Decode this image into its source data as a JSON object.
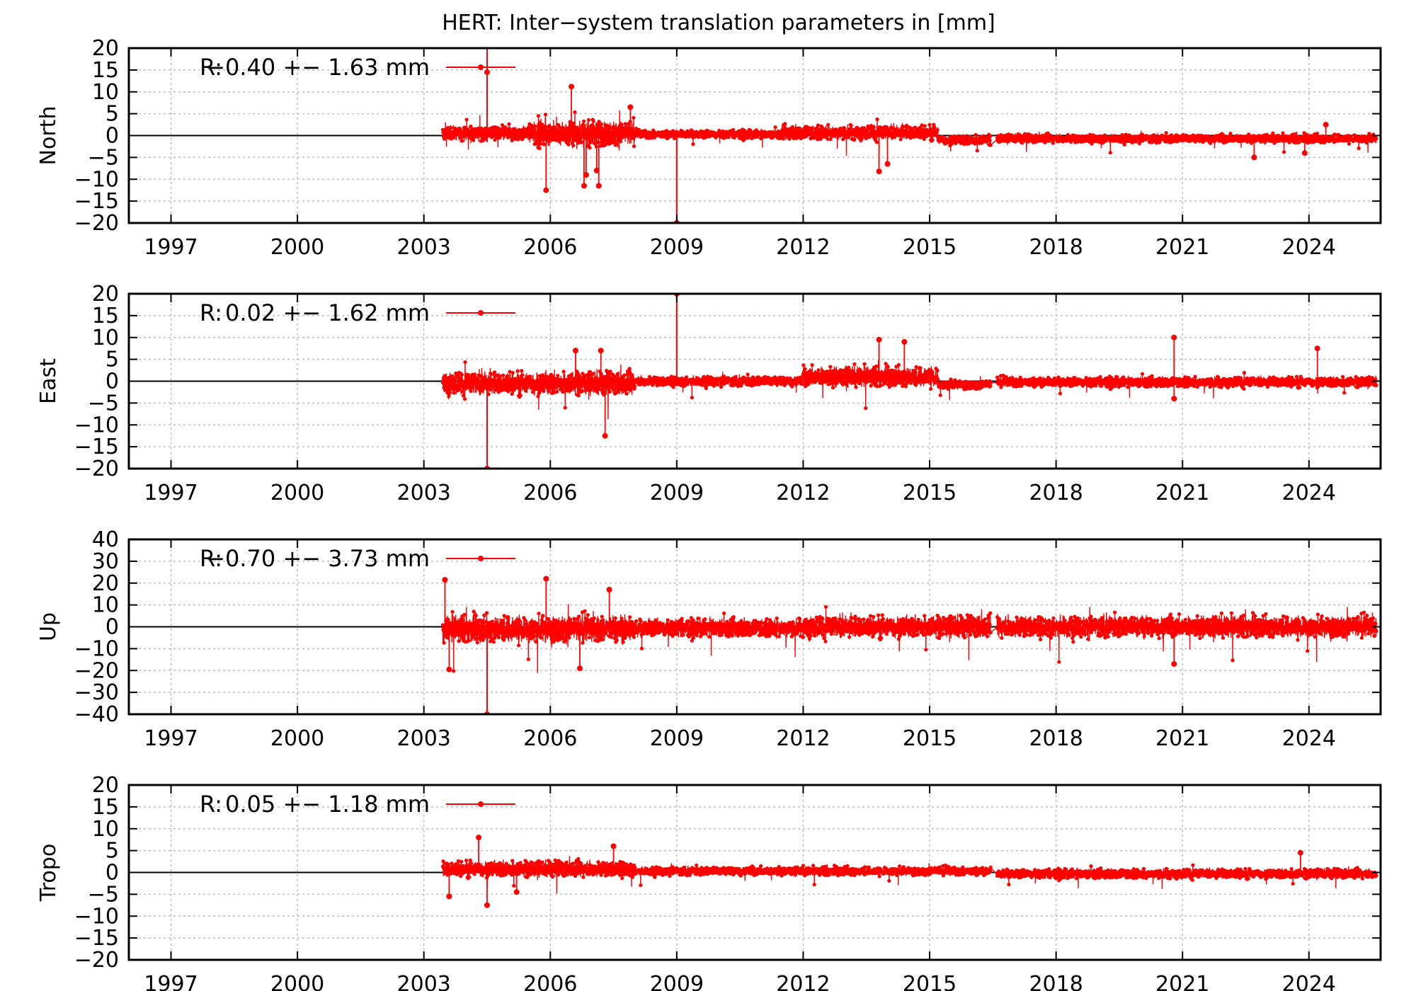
{
  "title": "HERT: Inter−system translation parameters in [mm]",
  "colors": {
    "series": "#ff0000",
    "frame": "#000000",
    "grid": "#bdbdbd",
    "zero": "#000000"
  },
  "chart_data": [
    {
      "type": "scatter",
      "ylabel": "North",
      "xlim": [
        1996,
        2025.7
      ],
      "ylim": [
        -20,
        20
      ],
      "yticks": [
        20,
        15,
        10,
        5,
        0,
        -5,
        -10,
        -15,
        -20
      ],
      "ytick_labels": [
        "20",
        "15",
        "10",
        "5",
        "0",
        "−5",
        "−10",
        "−15",
        "−20"
      ],
      "xticks": [
        1997,
        2000,
        2003,
        2006,
        2009,
        2012,
        2015,
        2018,
        2021,
        2024
      ],
      "xtick_labels": [
        "1997",
        "2000",
        "2003",
        "2006",
        "2009",
        "2012",
        "2015",
        "2018",
        "2021",
        "2024"
      ],
      "legend": {
        "label": "R:",
        "value": "−0.40 +− 1.63 mm"
      },
      "data_span": [
        2003.45,
        2025.6
      ],
      "segments": [
        {
          "start": 2003.45,
          "end": 2005.5,
          "mean": 0.5,
          "amp": 2.0
        },
        {
          "start": 2005.5,
          "end": 2008.0,
          "mean": 0.5,
          "amp": 3.5
        },
        {
          "start": 2008.0,
          "end": 2011.5,
          "mean": 0.3,
          "amp": 1.2
        },
        {
          "start": 2011.5,
          "end": 2015.2,
          "mean": 0.7,
          "amp": 2.0
        },
        {
          "start": 2015.2,
          "end": 2016.45,
          "mean": -1.0,
          "amp": 1.4
        },
        {
          "start": 2016.6,
          "end": 2025.6,
          "mean": -0.7,
          "amp": 1.2
        }
      ],
      "outliers": [
        {
          "x": 2004.5,
          "y": 14.5,
          "err": 16
        },
        {
          "x": 2005.9,
          "y": -12.5
        },
        {
          "x": 2006.5,
          "y": 11.2
        },
        {
          "x": 2006.8,
          "y": -11.5
        },
        {
          "x": 2006.85,
          "y": -9.0
        },
        {
          "x": 2007.15,
          "y": -11.5
        },
        {
          "x": 2007.1,
          "y": -8.0
        },
        {
          "x": 2007.9,
          "y": 6.5
        },
        {
          "x": 2009.0,
          "y": -20,
          "err": 20
        },
        {
          "x": 2013.8,
          "y": -8.2
        },
        {
          "x": 2014.0,
          "y": -6.5
        },
        {
          "x": 2022.7,
          "y": -5.0
        },
        {
          "x": 2023.9,
          "y": -4.0
        },
        {
          "x": 2024.4,
          "y": 2.5
        }
      ]
    },
    {
      "type": "scatter",
      "ylabel": "East",
      "xlim": [
        1996,
        2025.7
      ],
      "ylim": [
        -20,
        20
      ],
      "yticks": [
        20,
        15,
        10,
        5,
        0,
        -5,
        -10,
        -15,
        -20
      ],
      "ytick_labels": [
        "20",
        "15",
        "10",
        "5",
        "0",
        "−5",
        "−10",
        "−15",
        "−20"
      ],
      "xticks": [
        1997,
        2000,
        2003,
        2006,
        2009,
        2012,
        2015,
        2018,
        2021,
        2024
      ],
      "xtick_labels": [
        "1997",
        "2000",
        "2003",
        "2006",
        "2009",
        "2012",
        "2015",
        "2018",
        "2021",
        "2024"
      ],
      "legend": {
        "label": "R:",
        "value": "0.02 +− 1.62 mm"
      },
      "data_span": [
        2003.45,
        2025.6
      ],
      "segments": [
        {
          "start": 2003.45,
          "end": 2008.0,
          "mean": -0.5,
          "amp": 3.2
        },
        {
          "start": 2008.0,
          "end": 2012.0,
          "mean": 0.0,
          "amp": 1.4
        },
        {
          "start": 2012.0,
          "end": 2015.2,
          "mean": 1.0,
          "amp": 2.8
        },
        {
          "start": 2015.2,
          "end": 2016.45,
          "mean": -0.8,
          "amp": 1.3
        },
        {
          "start": 2016.6,
          "end": 2025.6,
          "mean": -0.2,
          "amp": 1.4
        }
      ],
      "outliers": [
        {
          "x": 2004.5,
          "y": -20,
          "err": 20
        },
        {
          "x": 2006.6,
          "y": 7.0
        },
        {
          "x": 2007.2,
          "y": 7.0
        },
        {
          "x": 2007.3,
          "y": -12.5
        },
        {
          "x": 2009.0,
          "y": 20,
          "err": 20
        },
        {
          "x": 2013.8,
          "y": 9.5
        },
        {
          "x": 2014.4,
          "y": 9.0
        },
        {
          "x": 2020.8,
          "y": 10.0
        },
        {
          "x": 2020.8,
          "y": -4.0
        },
        {
          "x": 2024.2,
          "y": 7.5
        }
      ]
    },
    {
      "type": "scatter",
      "ylabel": "Up",
      "xlim": [
        1996,
        2025.7
      ],
      "ylim": [
        -40,
        40
      ],
      "yticks": [
        40,
        30,
        20,
        10,
        0,
        -10,
        -20,
        -30,
        -40
      ],
      "ytick_labels": [
        "40",
        "30",
        "20",
        "10",
        "0",
        "−10",
        "−20",
        "−30",
        "−40"
      ],
      "xticks": [
        1997,
        2000,
        2003,
        2006,
        2009,
        2012,
        2015,
        2018,
        2021,
        2024
      ],
      "xtick_labels": [
        "1997",
        "2000",
        "2003",
        "2006",
        "2009",
        "2012",
        "2015",
        "2018",
        "2021",
        "2024"
      ],
      "legend": {
        "label": "R:",
        "value": "−0.70 +− 3.73 mm"
      },
      "data_span": [
        2003.45,
        2025.6
      ],
      "segments": [
        {
          "start": 2003.45,
          "end": 2008.0,
          "mean": -1.0,
          "amp": 7.5
        },
        {
          "start": 2008.0,
          "end": 2012.0,
          "mean": -0.5,
          "amp": 5.0
        },
        {
          "start": 2012.0,
          "end": 2016.45,
          "mean": 0.0,
          "amp": 6.0
        },
        {
          "start": 2016.6,
          "end": 2025.6,
          "mean": 0.0,
          "amp": 6.0
        }
      ],
      "outliers": [
        {
          "x": 2003.5,
          "y": 21.5
        },
        {
          "x": 2003.6,
          "y": -19.5
        },
        {
          "x": 2004.5,
          "y": -40,
          "err": 40
        },
        {
          "x": 2005.9,
          "y": 22.0
        },
        {
          "x": 2006.7,
          "y": -19.0
        },
        {
          "x": 2007.4,
          "y": 17.0
        },
        {
          "x": 2020.8,
          "y": -17.0
        }
      ]
    },
    {
      "type": "scatter",
      "ylabel": "Tropo",
      "xlim": [
        1996,
        2025.7
      ],
      "ylim": [
        -20,
        20
      ],
      "yticks": [
        20,
        15,
        10,
        5,
        0,
        -5,
        -10,
        -15,
        -20
      ],
      "ytick_labels": [
        "20",
        "15",
        "10",
        "5",
        "0",
        "−5",
        "−10",
        "−15",
        "−20"
      ],
      "xticks": [
        1997,
        2000,
        2003,
        2006,
        2009,
        2012,
        2015,
        2018,
        2021,
        2024
      ],
      "xtick_labels": [
        "1997",
        "2000",
        "2003",
        "2006",
        "2009",
        "2012",
        "2015",
        "2018",
        "2021",
        "2024"
      ],
      "legend": {
        "label": "R:",
        "value": "0.05 +− 1.18 mm"
      },
      "data_span": [
        2003.45,
        2025.6
      ],
      "segments": [
        {
          "start": 2003.45,
          "end": 2008.0,
          "mean": 0.8,
          "amp": 2.2
        },
        {
          "start": 2008.0,
          "end": 2016.45,
          "mean": 0.3,
          "amp": 1.2
        },
        {
          "start": 2016.6,
          "end": 2025.6,
          "mean": -0.3,
          "amp": 1.3
        }
      ],
      "outliers": [
        {
          "x": 2003.6,
          "y": -5.5
        },
        {
          "x": 2004.3,
          "y": 8.0
        },
        {
          "x": 2004.5,
          "y": -7.5
        },
        {
          "x": 2005.2,
          "y": -4.5
        },
        {
          "x": 2007.5,
          "y": 6.0
        },
        {
          "x": 2023.8,
          "y": 4.5
        }
      ]
    }
  ]
}
